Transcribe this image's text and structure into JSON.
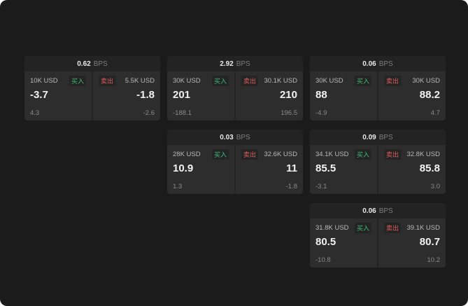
{
  "colors": {
    "background": "#1b1b1b",
    "card": "#232323",
    "panel": "#2d2d2d",
    "buy": "#3fbf77",
    "sell": "#e05b5b"
  },
  "cards": [
    {
      "bps": "0.62",
      "unit": "BPS",
      "buy": {
        "size": "10K USD",
        "tag": "买入",
        "price": "-3.7",
        "delta": "4.3"
      },
      "sell": {
        "size": "5.5K USD",
        "tag": "卖出",
        "price": "-1.8",
        "delta": "-2.6"
      }
    },
    {
      "bps": "2.92",
      "unit": "BPS",
      "buy": {
        "size": "30K USD",
        "tag": "买入",
        "price": "201",
        "delta": "-188.1"
      },
      "sell": {
        "size": "30.1K USD",
        "tag": "卖出",
        "price": "210",
        "delta": "196.5"
      }
    },
    {
      "bps": "0.06",
      "unit": "BPS",
      "buy": {
        "size": "30K USD",
        "tag": "买入",
        "price": "88",
        "delta": "-4.9"
      },
      "sell": {
        "size": "30K USD",
        "tag": "卖出",
        "price": "88.2",
        "delta": "4.7"
      }
    },
    {
      "bps": "0.03",
      "unit": "BPS",
      "buy": {
        "size": "28K USD",
        "tag": "买入",
        "price": "10.9",
        "delta": "1.3"
      },
      "sell": {
        "size": "32.6K USD",
        "tag": "卖出",
        "price": "11",
        "delta": "-1.8"
      }
    },
    {
      "bps": "0.09",
      "unit": "BPS",
      "buy": {
        "size": "34.1K USD",
        "tag": "买入",
        "price": "85.5",
        "delta": "-3.1"
      },
      "sell": {
        "size": "32.8K USD",
        "tag": "卖出",
        "price": "85.8",
        "delta": "3.0"
      }
    },
    {
      "bps": "0.06",
      "unit": "BPS",
      "buy": {
        "size": "31.8K USD",
        "tag": "买入",
        "price": "80.5",
        "delta": "-10.8"
      },
      "sell": {
        "size": "39.1K USD",
        "tag": "卖出",
        "price": "80.7",
        "delta": "10.2"
      }
    }
  ]
}
